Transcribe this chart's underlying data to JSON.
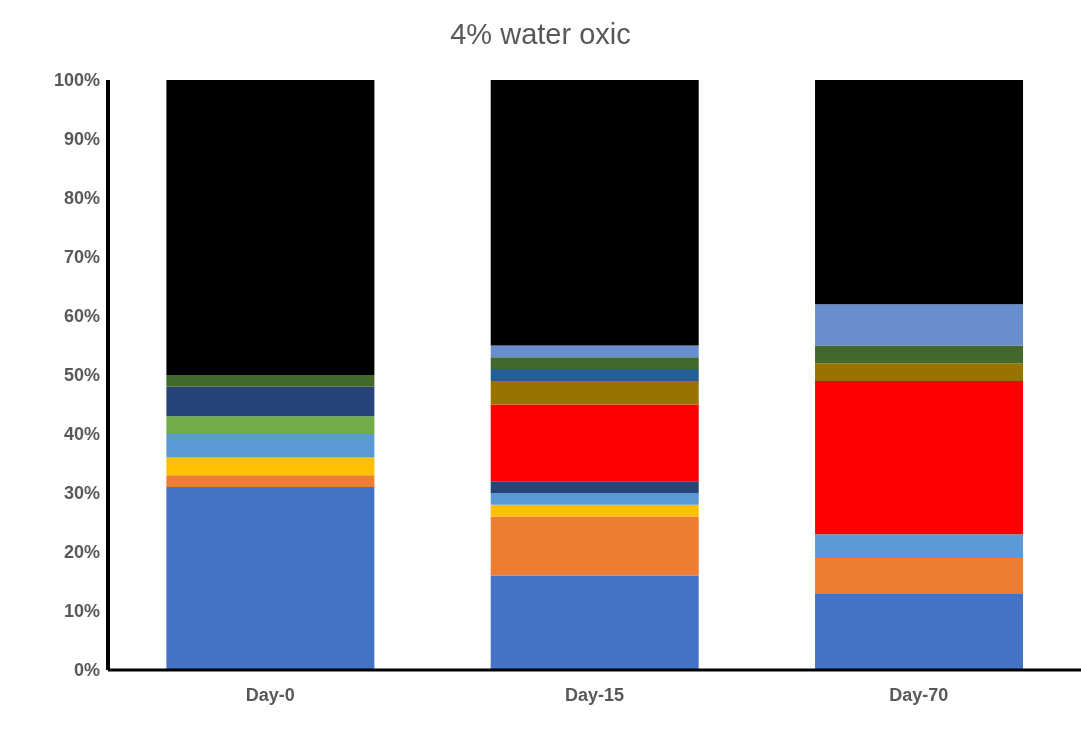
{
  "chart_data": {
    "type": "bar",
    "title": "4% water oxic",
    "categories": [
      "Day-0",
      "Day-15",
      "Day-70"
    ],
    "stacked": true,
    "grid": false,
    "legend": false,
    "ylim": [
      0,
      100
    ],
    "yticks": [
      {
        "value": 0,
        "label": "0%"
      },
      {
        "value": 10,
        "label": "10%"
      },
      {
        "value": 20,
        "label": "20%"
      },
      {
        "value": 30,
        "label": "30%"
      },
      {
        "value": 40,
        "label": "40%"
      },
      {
        "value": 50,
        "label": "50%"
      },
      {
        "value": 60,
        "label": "60%"
      },
      {
        "value": 70,
        "label": "70%"
      },
      {
        "value": 80,
        "label": "80%"
      },
      {
        "value": 90,
        "label": "90%"
      },
      {
        "value": 100,
        "label": "100%"
      }
    ],
    "series": [
      {
        "color": "#4472c4",
        "values": [
          31,
          16,
          13
        ]
      },
      {
        "color": "#ed7d31",
        "values": [
          2,
          10,
          6
        ]
      },
      {
        "color": "#ffc000",
        "values": [
          3,
          2,
          null
        ]
      },
      {
        "color": "#5b9bd5",
        "values": [
          4,
          2,
          4
        ]
      },
      {
        "color": "#70ad47",
        "values": [
          3,
          null,
          null
        ]
      },
      {
        "color": "#264478",
        "values": [
          5,
          2,
          null
        ]
      },
      {
        "color": "#ff0000",
        "values": [
          null,
          13,
          26
        ]
      },
      {
        "color": "#997300",
        "values": [
          null,
          4,
          3
        ]
      },
      {
        "color": "#255e91",
        "values": [
          null,
          2,
          null
        ]
      },
      {
        "color": "#43682b",
        "values": [
          2,
          2,
          3
        ]
      },
      {
        "color": "#698ed0",
        "values": [
          null,
          2,
          7
        ]
      },
      {
        "color": "#000000",
        "values": [
          50,
          45,
          38
        ]
      }
    ]
  }
}
